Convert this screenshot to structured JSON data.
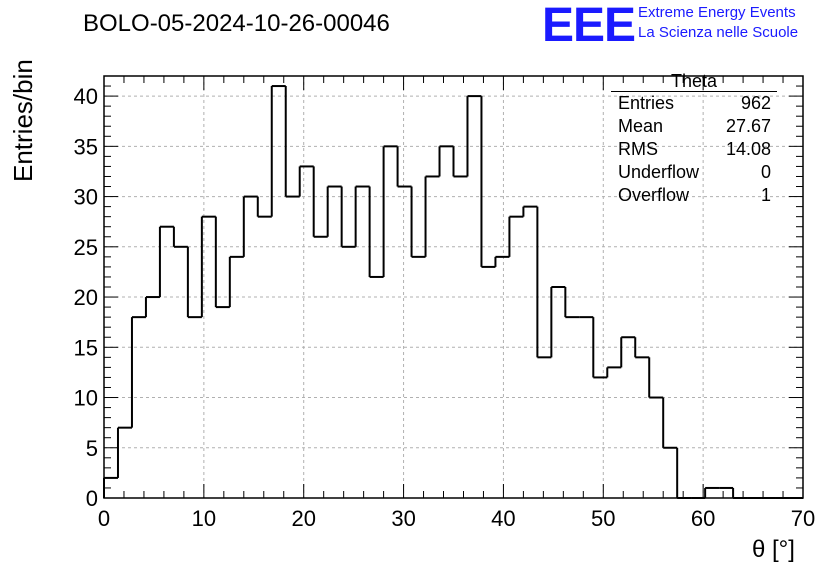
{
  "chart_data": {
    "type": "bar",
    "title": "BOLO-05-2024-10-26-00046",
    "xlabel": "θ [°]",
    "ylabel": "Entries/bin",
    "xlim": [
      0,
      70
    ],
    "ylim": [
      0,
      42
    ],
    "grid": true,
    "x_ticks": [
      "0",
      "10",
      "20",
      "30",
      "40",
      "50",
      "60",
      "70"
    ],
    "y_ticks": [
      "0",
      "5",
      "10",
      "15",
      "20",
      "25",
      "30",
      "35",
      "40"
    ],
    "bin_edges_start": 0,
    "bin_width": 1.4,
    "values": [
      2,
      7,
      18,
      20,
      27,
      25,
      18,
      28,
      19,
      24,
      30,
      28,
      41,
      30,
      33,
      26,
      31,
      25,
      31,
      22,
      35,
      31,
      24,
      32,
      35,
      32,
      40,
      23,
      24,
      28,
      29,
      14,
      21,
      18,
      18,
      12,
      13,
      16,
      14,
      10,
      5,
      0,
      0,
      1,
      1,
      0,
      0,
      0,
      0,
      0
    ],
    "stats": {
      "title": "Theta",
      "rows": [
        {
          "label": "Entries",
          "value": "962"
        },
        {
          "label": "Mean",
          "value": "27.67"
        },
        {
          "label": "RMS",
          "value": "14.08"
        },
        {
          "label": "Underflow",
          "value": "0"
        },
        {
          "label": "Overflow",
          "value": "1"
        }
      ]
    }
  },
  "logo": {
    "text": "EEE",
    "line1": "Extreme Energy Events",
    "line2": "La Scienza nelle Scuole"
  },
  "colors": {
    "logo": "#1a1aff",
    "grid": "#b0b0b0",
    "line": "#000000"
  }
}
